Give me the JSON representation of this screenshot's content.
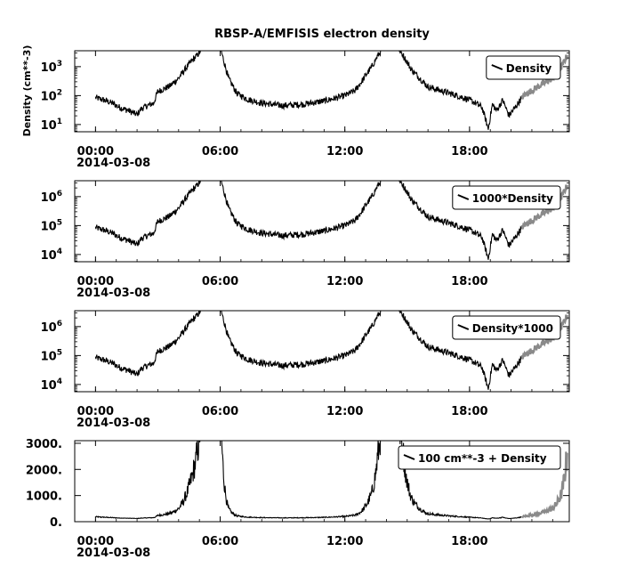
{
  "title": "RBSP-A/EMFISIS  electron density",
  "time_axis": {
    "ticks": [
      "00:00",
      "06:00",
      "12:00",
      "18:00"
    ],
    "tick_hours": [
      0,
      6,
      12,
      18
    ],
    "range_hours": [
      -1,
      22.8
    ],
    "date_label": "2014-03-08"
  },
  "density_profile": {
    "units": "cm**-3",
    "hours": [
      0.0,
      0.4,
      0.8,
      1.2,
      1.6,
      2.0,
      2.2,
      2.5,
      2.8,
      3.0,
      3.3,
      3.6,
      4.0,
      4.3,
      4.6,
      4.9,
      5.2,
      5.5,
      5.9,
      6.1,
      6.4,
      6.8,
      7.3,
      8.0,
      9.0,
      10.0,
      11.0,
      11.5,
      12.0,
      12.5,
      12.8,
      13.0,
      13.3,
      13.6,
      14.0,
      14.4,
      14.8,
      15.2,
      15.6,
      16.0,
      16.6,
      17.2,
      17.8,
      18.2,
      18.6,
      18.9,
      19.1,
      19.3,
      19.6,
      19.9,
      20.2,
      20.6,
      21.0,
      21.5,
      22.0,
      22.4,
      22.7
    ],
    "values": [
      85,
      70,
      55,
      38,
      30,
      22,
      35,
      45,
      55,
      140,
      170,
      220,
      400,
      800,
      1500,
      2500,
      5000,
      8000,
      8000,
      2500,
      400,
      120,
      75,
      55,
      45,
      50,
      65,
      80,
      100,
      150,
      300,
      500,
      1000,
      2500,
      6000,
      6000,
      2500,
      800,
      400,
      200,
      150,
      110,
      80,
      60,
      40,
      7,
      50,
      30,
      70,
      20,
      40,
      100,
      150,
      250,
      400,
      900,
      2500
    ],
    "gray_segment_start_hour": 20.5
  },
  "panels": [
    {
      "ylabel": "Density (cm**-3)",
      "scale": "log",
      "y_exponent_range": [
        0.75,
        3.55
      ],
      "y_tick_exponents": [
        1,
        2,
        3
      ],
      "y_tick_base": "10",
      "y_tick_sup": [
        "1",
        "2",
        "3"
      ],
      "legend": "Density",
      "offset": 0,
      "multiplier": 1
    },
    {
      "ylabel": "",
      "scale": "log",
      "y_exponent_range": [
        3.75,
        6.55
      ],
      "y_tick_exponents": [
        4,
        5,
        6
      ],
      "y_tick_base": "10",
      "y_tick_sup": [
        "4",
        "5",
        "6"
      ],
      "legend": "1000*Density",
      "offset": 0,
      "multiplier": 1000
    },
    {
      "ylabel": "",
      "scale": "log",
      "y_exponent_range": [
        3.75,
        6.55
      ],
      "y_tick_exponents": [
        4,
        5,
        6
      ],
      "y_tick_base": "10",
      "y_tick_sup": [
        "4",
        "5",
        "6"
      ],
      "legend": "Density*1000",
      "offset": 0,
      "multiplier": 1000
    },
    {
      "ylabel": "",
      "scale": "linear",
      "y_range": [
        0,
        3100
      ],
      "y_ticks": [
        0,
        1000,
        2000,
        3000
      ],
      "y_tick_labels": [
        "0.",
        "1000.",
        "2000.",
        "3000."
      ],
      "legend": "100 cm**-3 + Density",
      "offset": 100,
      "multiplier": 1
    }
  ],
  "chart_data": [
    {
      "type": "line",
      "title": "RBSP-A/EMFISIS  electron density",
      "ylabel": "Density (cm**-3)",
      "xlabel": "",
      "scale": "log",
      "ylim": [
        5.6,
        3550
      ],
      "series": [
        {
          "name": "Density",
          "x": "time_axis (hours since 2014-03-08 00:00)",
          "values_ref": "density_profile"
        }
      ]
    },
    {
      "type": "line",
      "scale": "log",
      "ylim": [
        5600,
        3550000
      ],
      "series": [
        {
          "name": "1000*Density",
          "values_ref": "density_profile x 1000"
        }
      ]
    },
    {
      "type": "line",
      "scale": "log",
      "ylim": [
        5600,
        3550000
      ],
      "series": [
        {
          "name": "Density*1000",
          "values_ref": "density_profile x 1000"
        }
      ]
    },
    {
      "type": "line",
      "scale": "linear",
      "ylim": [
        0,
        3100
      ],
      "series": [
        {
          "name": "100 cm**-3 + Density",
          "values_ref": "density_profile + 100"
        }
      ]
    }
  ]
}
